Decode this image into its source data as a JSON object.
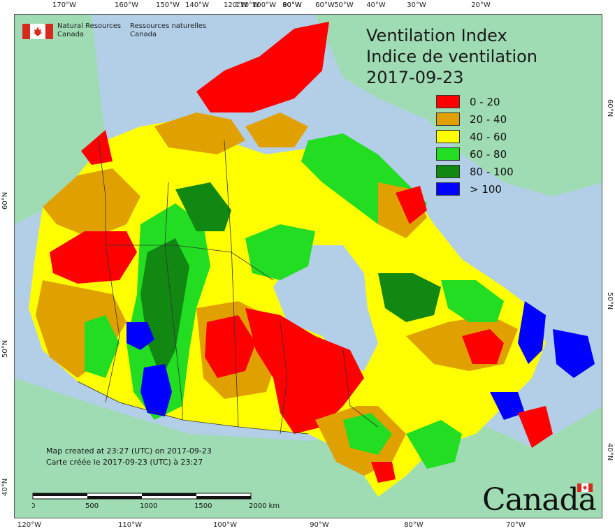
{
  "title": {
    "line1": "Ventilation Index",
    "line2": "Indice de ventilation",
    "date": "2017-09-23"
  },
  "legend": [
    {
      "label": "0 - 20",
      "color": "#ff0000"
    },
    {
      "label": "20 - 40",
      "color": "#e0a000"
    },
    {
      "label": "40 - 60",
      "color": "#ffff00"
    },
    {
      "label": "60 - 80",
      "color": "#22dd22"
    },
    {
      "label": "80 - 100",
      "color": "#118811"
    },
    {
      "label": "> 100",
      "color": "#0000ff"
    }
  ],
  "agency": {
    "en_line1": "Natural Resources",
    "en_line2": "Canada",
    "fr_line1": "Ressources naturelles",
    "fr_line2": "Canada"
  },
  "footer": {
    "created_en": "Map created at 23:27 (UTC) on 2017-09-23",
    "created_fr": "Carte créée le 2017-09-23 (UTC) à 23:27"
  },
  "scale": {
    "labels": [
      "0",
      "500",
      "1000",
      "1500",
      "2000"
    ],
    "unit": "km"
  },
  "wordmark": "Canada",
  "graticule": {
    "top": [
      "170°W",
      "160°W",
      "150°W",
      "140°W",
      "120°W",
      "110°W",
      "100°W",
      "90°W",
      "80°W",
      "60°W",
      "50°W",
      "40°W",
      "30°W",
      "20°W"
    ],
    "bottom": [
      "120°W",
      "110°W",
      "100°W",
      "90°W",
      "80°W",
      "70°W"
    ],
    "left": [
      "60°N",
      "50°N",
      "40°N"
    ],
    "right": [
      "60°N",
      "50°N",
      "40°N"
    ]
  },
  "colors": {
    "ocean": "#b3cfe8",
    "land": "#9fdcb4",
    "border": "#333333"
  }
}
